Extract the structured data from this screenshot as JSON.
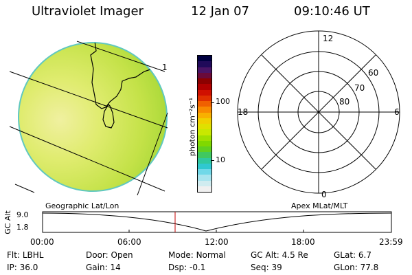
{
  "header": {
    "title": "Ultraviolet Imager",
    "date": "12 Jan 07",
    "time": "09:10:46 UT"
  },
  "globe": {
    "track_label": "1"
  },
  "colorbar": {
    "unit_label": "photon cm⁻²s⁻¹",
    "ticks": [
      "100",
      "10"
    ],
    "colors": [
      "#000040",
      "#200a5a",
      "#4a1466",
      "#6a0a3a",
      "#8c0000",
      "#b00000",
      "#d01000",
      "#e03000",
      "#f06000",
      "#f88a00",
      "#f8b000",
      "#f0d000",
      "#e0e000",
      "#c8e800",
      "#a0e000",
      "#80d800",
      "#60d020",
      "#40c860",
      "#30c8a0",
      "#30c8d0",
      "#70d8e8",
      "#a8e4ee",
      "#d0ecf0",
      "#f0f0f0"
    ]
  },
  "polar": {
    "lat_labels": [
      "60",
      "70",
      "80"
    ],
    "mlt_labels": {
      "top": "12",
      "left": "18",
      "right": "6",
      "bottom": "0"
    }
  },
  "timeline": {
    "left_title": "Geographic Lat/Lon",
    "right_title": "Apex MLat/MLT",
    "y_axis_label": "GC Alt",
    "y_ticks": [
      "9.0",
      "1.8"
    ],
    "x_ticks": [
      "00:00",
      "06:00",
      "12:00",
      "18:00",
      "23:59"
    ],
    "marker_color": "#c00000"
  },
  "status": {
    "row1": [
      {
        "label": "Flt:",
        "value": "LBHL"
      },
      {
        "label": "Door:",
        "value": "Open"
      },
      {
        "label": "Mode:",
        "value": "Normal"
      },
      {
        "label": "GC Alt:",
        "value": "4.5 Re"
      },
      {
        "label": "GLat:",
        "value": "6.7"
      }
    ],
    "row2": [
      {
        "label": "IP:",
        "value": "36.0"
      },
      {
        "label": "Gain:",
        "value": "14"
      },
      {
        "label": "Dsp:",
        "value": "-0.1"
      },
      {
        "label": "Seq:",
        "value": "39"
      },
      {
        "label": "GLon:",
        "value": "77.8"
      }
    ]
  }
}
